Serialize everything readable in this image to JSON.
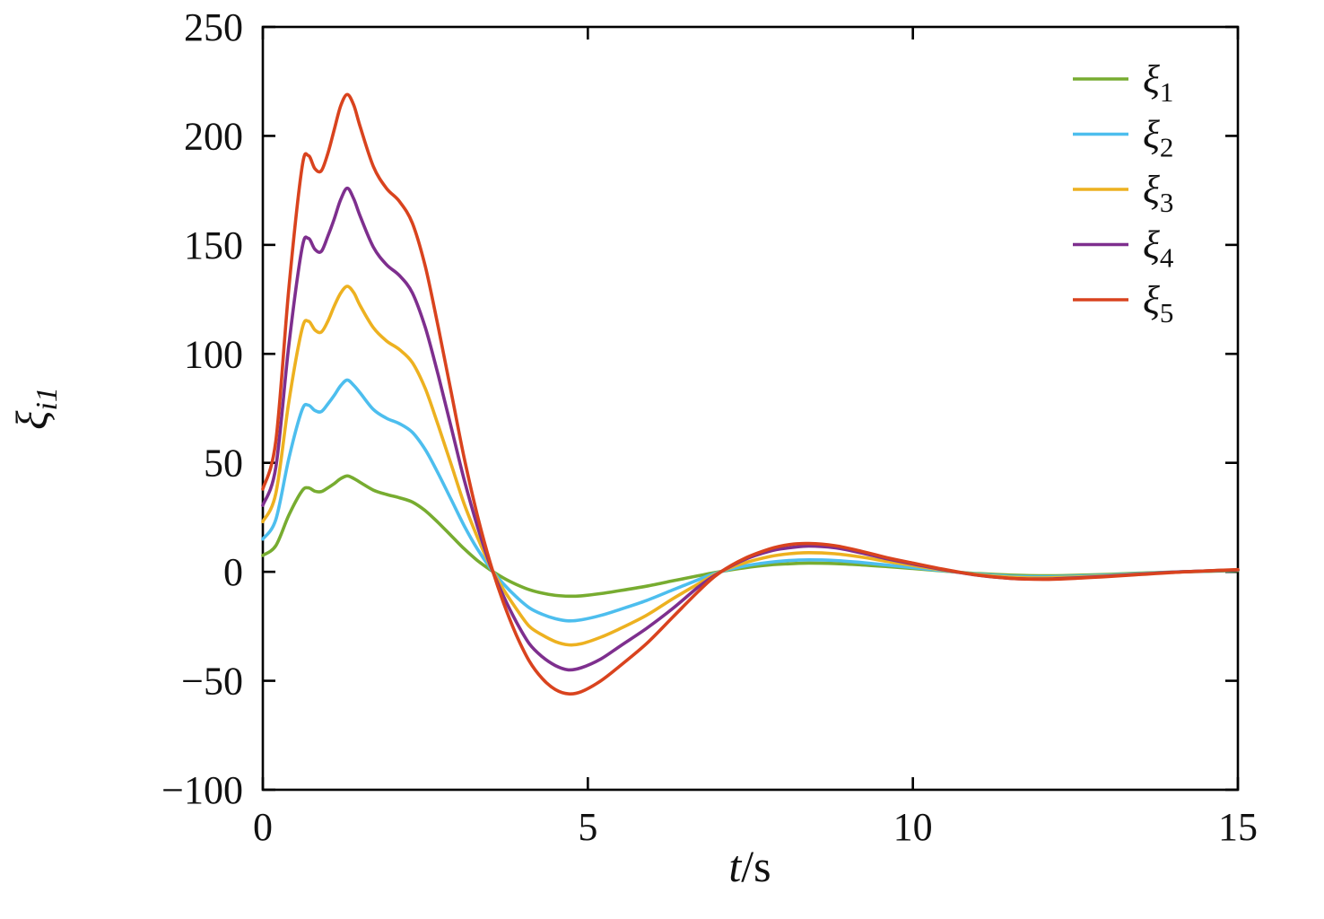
{
  "chart_data": {
    "type": "line",
    "title": "",
    "xlabel_italic": "t",
    "xlabel_rest": "/s",
    "ylabel_symbol": "ξ",
    "ylabel_subscript": "i1",
    "xlim": [
      0,
      15
    ],
    "ylim": [
      -100,
      250
    ],
    "xticks": [
      0,
      5,
      10,
      15
    ],
    "xtick_labels": [
      "0",
      "5",
      "10",
      "15"
    ],
    "yticks": [
      -100,
      -50,
      0,
      50,
      100,
      150,
      200,
      250
    ],
    "ytick_labels": [
      "−100",
      "−50",
      "0",
      "50",
      "100",
      "150",
      "200",
      "250"
    ],
    "grid": false,
    "legend_position": "top-right-inside",
    "axis_color": "#000000",
    "x": [
      0,
      0.2,
      0.4,
      0.6,
      0.7,
      0.8,
      0.9,
      1.0,
      1.1,
      1.2,
      1.3,
      1.4,
      1.5,
      1.7,
      1.9,
      2.1,
      2.3,
      2.5,
      2.7,
      2.9,
      3.1,
      3.3,
      3.5,
      3.7,
      3.9,
      4.1,
      4.3,
      4.5,
      4.7,
      4.9,
      5.2,
      5.5,
      5.9,
      6.3,
      6.7,
      7.0,
      7.4,
      7.8,
      8.1,
      8.4,
      8.8,
      9.2,
      9.6,
      10.0,
      10.5,
      11.0,
      11.5,
      12.0,
      12.5,
      13.0,
      13.5,
      14.0,
      14.5,
      15.0
    ],
    "series": [
      {
        "name": "ξ1",
        "symbol": "ξ",
        "sub": "1",
        "color": "#77AC30",
        "values": [
          7.5,
          12,
          26,
          37,
          38.5,
          37,
          36.8,
          38.5,
          40.5,
          42.8,
          44,
          42.8,
          41,
          37.5,
          35.5,
          34,
          32,
          28,
          22.5,
          16.5,
          10.5,
          5.2,
          0.9,
          -2.8,
          -5.8,
          -8.2,
          -9.8,
          -10.8,
          -11.2,
          -11,
          -10,
          -8.6,
          -6.6,
          -4.2,
          -1.8,
          -0.1,
          1.8,
          3.2,
          3.7,
          4,
          3.8,
          3.2,
          2.4,
          1.5,
          0.3,
          -0.8,
          -1.5,
          -1.8,
          -1.6,
          -1.2,
          -0.6,
          -0.1,
          0.2,
          0.6
        ]
      },
      {
        "name": "ξ2",
        "symbol": "ξ",
        "sub": "2",
        "color": "#4DBEEE",
        "values": [
          15,
          24,
          52,
          74,
          76.5,
          74,
          73.5,
          77,
          81,
          85.5,
          88,
          85.5,
          82,
          74.5,
          70.5,
          68,
          64,
          56,
          45,
          33,
          21,
          10.5,
          1.7,
          -5.5,
          -11.5,
          -16.5,
          -19.5,
          -21.5,
          -22.5,
          -22,
          -20,
          -17.2,
          -13.2,
          -8.4,
          -3.6,
          -0.3,
          2.6,
          4.4,
          5.2,
          5.5,
          5.2,
          4.3,
          3.1,
          1.9,
          0.4,
          -1,
          -2,
          -2.3,
          -2,
          -1.5,
          -0.8,
          -0.1,
          0.3,
          0.8
        ]
      },
      {
        "name": "ξ3",
        "symbol": "ξ",
        "sub": "3",
        "color": "#EDB120",
        "values": [
          23,
          36,
          78,
          111,
          115,
          111,
          110,
          115,
          122,
          128,
          131,
          128,
          122,
          112,
          106,
          102,
          96,
          84,
          67,
          49,
          31,
          16,
          2.5,
          -8,
          -17,
          -25,
          -29,
          -32,
          -33.5,
          -33,
          -30,
          -26,
          -20,
          -12.5,
          -5.5,
          -0.5,
          4,
          7,
          8.3,
          8.8,
          8.3,
          6.8,
          4.8,
          2.9,
          0.6,
          -1.3,
          -2.5,
          -2.8,
          -2.4,
          -1.8,
          -1,
          -0.2,
          0.4,
          0.9
        ]
      },
      {
        "name": "ξ4",
        "symbol": "ξ",
        "sub": "4",
        "color": "#7E2F8E",
        "values": [
          30.5,
          48,
          104,
          148,
          153,
          148,
          147,
          154,
          162,
          171,
          176,
          171,
          163,
          149,
          141,
          136,
          128,
          112,
          90,
          66,
          42,
          21,
          3,
          -11,
          -23,
          -33,
          -39,
          -43,
          -45,
          -44,
          -40,
          -34,
          -26,
          -17,
          -7,
          -0.8,
          5.5,
          9.5,
          11,
          11.8,
          11,
          8.7,
          6,
          3.6,
          0.8,
          -1.6,
          -3,
          -3.3,
          -2.8,
          -2,
          -1.1,
          -0.2,
          0.4,
          0.9
        ]
      },
      {
        "name": "ξ5",
        "symbol": "ξ",
        "sub": "5",
        "color": "#D9431E",
        "values": [
          38,
          60,
          130,
          185,
          191,
          185,
          184,
          192,
          203,
          214,
          219,
          214,
          204,
          186,
          176,
          170,
          160,
          140,
          112,
          82,
          52,
          26,
          4,
          -14,
          -29,
          -41,
          -49,
          -54,
          -56,
          -55,
          -50,
          -43,
          -33,
          -21,
          -9,
          -1,
          6,
          10.5,
          12.5,
          13,
          12,
          9.5,
          6.5,
          4,
          1,
          -1.5,
          -3,
          -3.5,
          -3,
          -2.2,
          -1.2,
          -0.3,
          0.4,
          1
        ]
      }
    ]
  }
}
